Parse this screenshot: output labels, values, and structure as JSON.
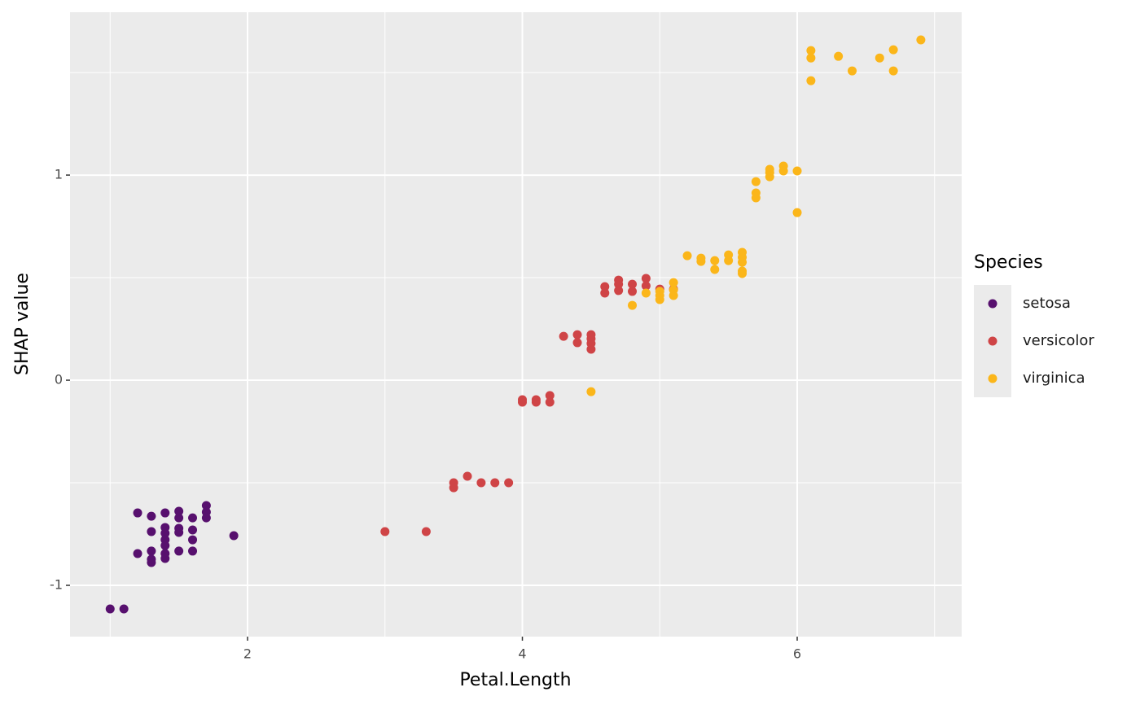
{
  "chart_data": {
    "type": "scatter",
    "x_label": "Petal.Length",
    "y_label": "SHAP value",
    "legend_title": "Species",
    "xlim": [
      0.708,
      7.197
    ],
    "ylim": [
      -1.25,
      1.794
    ],
    "xticks": [
      2,
      4,
      6
    ],
    "yticks": [
      -1,
      0,
      1
    ],
    "x_minor_grid": [
      1,
      3,
      5,
      7
    ],
    "y_minor_grid": [
      -0.5,
      0.5,
      1.5
    ],
    "grid": true,
    "legend_position": "right",
    "series": [
      {
        "name": "setosa",
        "color": "#57106e",
        "x": [
          1.0,
          1.1,
          1.2,
          1.2,
          1.3,
          1.3,
          1.3,
          1.3,
          1.3,
          1.4,
          1.4,
          1.4,
          1.4,
          1.4,
          1.4,
          1.4,
          1.5,
          1.5,
          1.5,
          1.5,
          1.5,
          1.6,
          1.6,
          1.6,
          1.6,
          1.7,
          1.7,
          1.7,
          1.9
        ],
        "y": [
          -1.115,
          -1.115,
          -0.647,
          -0.845,
          -0.663,
          -0.738,
          -0.833,
          -0.873,
          -0.889,
          -0.647,
          -0.718,
          -0.746,
          -0.778,
          -0.806,
          -0.845,
          -0.869,
          -0.639,
          -0.671,
          -0.722,
          -0.742,
          -0.833,
          -0.671,
          -0.73,
          -0.778,
          -0.833,
          -0.611,
          -0.643,
          -0.671,
          -0.758
        ]
      },
      {
        "name": "versicolor",
        "color": "#cf4446",
        "x": [
          3.0,
          3.3,
          3.5,
          3.5,
          3.6,
          3.7,
          3.8,
          3.9,
          4.0,
          4.0,
          4.1,
          4.1,
          4.2,
          4.2,
          4.3,
          4.4,
          4.4,
          4.5,
          4.5,
          4.5,
          4.5,
          4.6,
          4.6,
          4.7,
          4.7,
          4.7,
          4.8,
          4.8,
          4.9,
          4.9,
          5.0,
          5.1
        ],
        "y": [
          -0.738,
          -0.738,
          -0.5,
          -0.524,
          -0.468,
          -0.5,
          -0.5,
          -0.5,
          -0.095,
          -0.107,
          -0.095,
          -0.107,
          -0.075,
          -0.107,
          0.214,
          0.222,
          0.183,
          0.222,
          0.202,
          0.179,
          0.151,
          0.456,
          0.425,
          0.488,
          0.468,
          0.437,
          0.468,
          0.433,
          0.496,
          0.46,
          0.444,
          0.444
        ]
      },
      {
        "name": "virginica",
        "color": "#fbb61a",
        "x": [
          4.5,
          4.8,
          4.9,
          5.0,
          5.0,
          5.0,
          5.1,
          5.1,
          5.1,
          5.2,
          5.3,
          5.3,
          5.4,
          5.4,
          5.5,
          5.5,
          5.6,
          5.6,
          5.6,
          5.6,
          5.6,
          5.7,
          5.7,
          5.7,
          5.8,
          5.8,
          5.8,
          5.9,
          5.9,
          6.0,
          6.0,
          6.1,
          6.1,
          6.1,
          6.3,
          6.4,
          6.6,
          6.7,
          6.7,
          6.9
        ],
        "y": [
          -0.056,
          0.365,
          0.425,
          0.433,
          0.413,
          0.393,
          0.476,
          0.44,
          0.413,
          0.607,
          0.595,
          0.579,
          0.583,
          0.54,
          0.611,
          0.583,
          0.623,
          0.599,
          0.575,
          0.532,
          0.52,
          0.968,
          0.913,
          0.889,
          1.028,
          1.012,
          0.992,
          1.044,
          1.02,
          1.02,
          0.817,
          1.607,
          1.571,
          1.46,
          1.579,
          1.508,
          1.571,
          1.611,
          1.508,
          1.659
        ]
      }
    ]
  }
}
